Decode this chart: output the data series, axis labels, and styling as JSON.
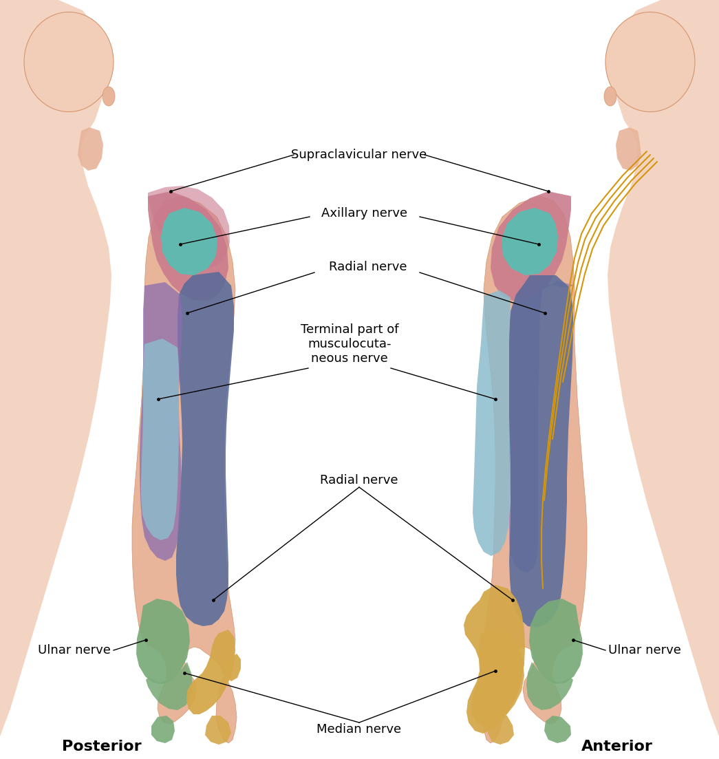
{
  "background_color": "#ffffff",
  "labels": {
    "posterior": "Posterior",
    "anterior": "Anterior",
    "supraclavicular": "Supraclavicular nerve",
    "axillary": "Axillary nerve",
    "radial_upper": "Radial nerve",
    "terminal": "Terminal part of\nmusculocuta-\nneous nerve",
    "radial_lower": "Radial nerve",
    "ulnar_left": "Ulnar nerve",
    "ulnar_right": "Ulnar nerve",
    "median": "Median nerve"
  },
  "colors": {
    "skin": "#E8B49A",
    "skin_light": "#F2CDB8",
    "skin_shadow": "#D4956E",
    "pink_zone": "#C97A8C",
    "teal_zone": "#5BBCB0",
    "blue_zone": "#5A6B9A",
    "purple_zone": "#8B6EAF",
    "light_blue_zone": "#8BBCCC",
    "pink_light_zone": "#C8909A",
    "green_zone": "#7AAB7A",
    "yellow_zone": "#D4A84B",
    "nerve_line": "#D4960A"
  }
}
